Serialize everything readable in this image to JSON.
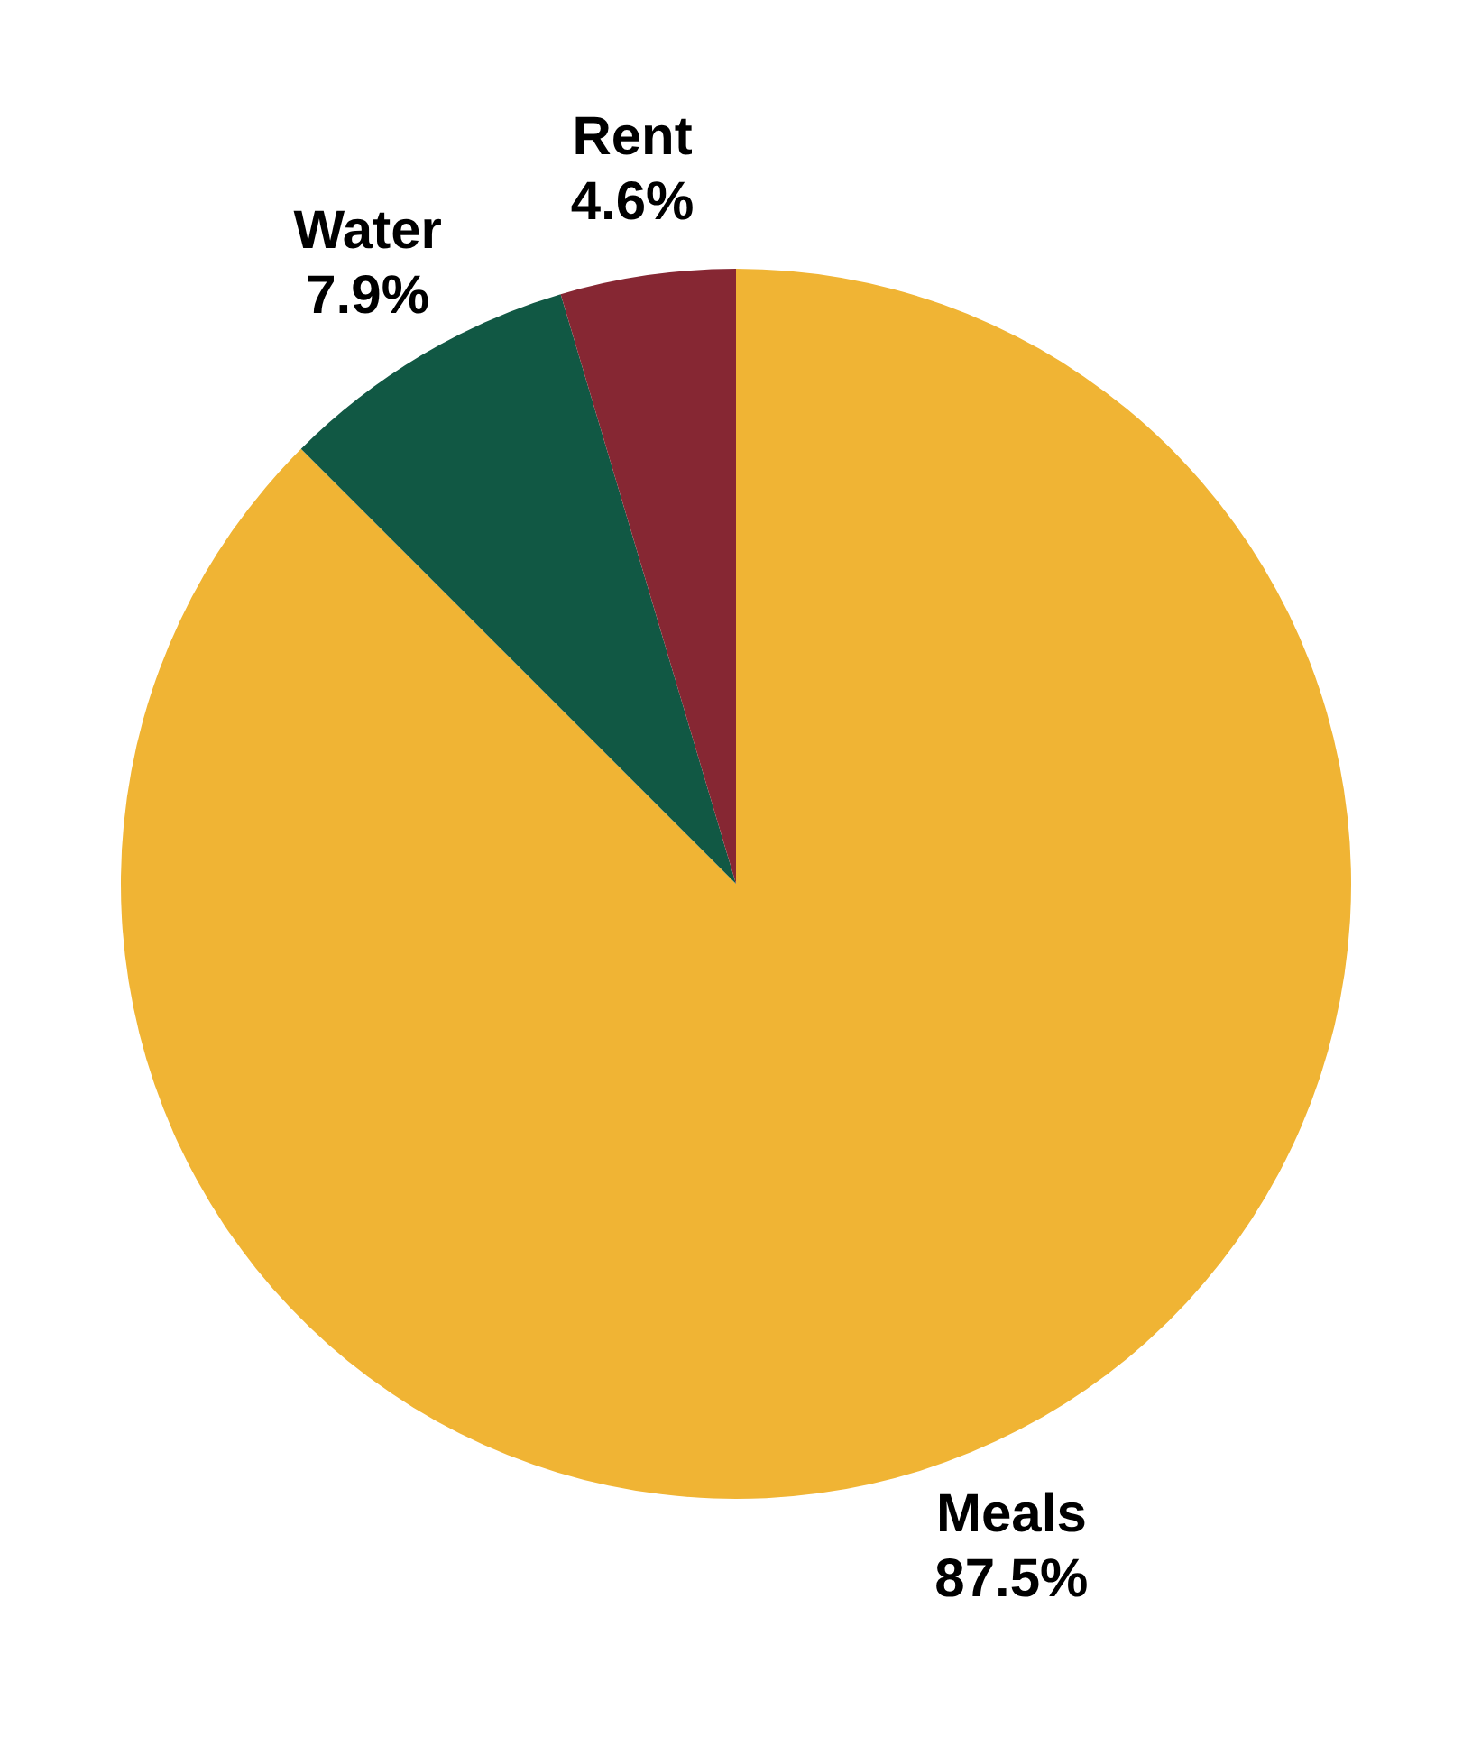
{
  "chart_data": {
    "type": "pie",
    "categories": [
      "Meals",
      "Water",
      "Rent"
    ],
    "values": [
      87.5,
      7.9,
      4.6
    ],
    "colors": [
      "#f0b434",
      "#115844",
      "#862733"
    ],
    "value_labels": [
      "87.5%",
      "7.9%",
      "4.6%"
    ],
    "legend": false
  }
}
